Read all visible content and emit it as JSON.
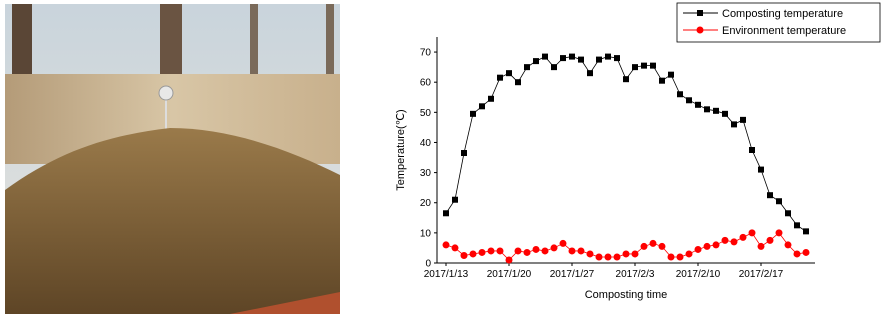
{
  "chart_data": {
    "type": "line",
    "xlabel": "Composting time",
    "ylabel": "Temperature(℃)",
    "x": [
      "2017/1/13",
      "2017/1/14",
      "2017/1/15",
      "2017/1/16",
      "2017/1/17",
      "2017/1/18",
      "2017/1/19",
      "2017/1/20",
      "2017/1/21",
      "2017/1/22",
      "2017/1/23",
      "2017/1/24",
      "2017/1/25",
      "2017/1/26",
      "2017/1/27",
      "2017/1/28",
      "2017/1/29",
      "2017/1/30",
      "2017/1/31",
      "2017/2/1",
      "2017/2/2",
      "2017/2/3",
      "2017/2/4",
      "2017/2/5",
      "2017/2/6",
      "2017/2/7",
      "2017/2/8",
      "2017/2/9",
      "2017/2/10",
      "2017/2/11",
      "2017/2/12",
      "2017/2/13",
      "2017/2/14",
      "2017/2/15",
      "2017/2/16",
      "2017/2/17",
      "2017/2/18",
      "2017/2/19",
      "2017/2/20",
      "2017/2/21",
      "2017/2/22"
    ],
    "series": [
      {
        "name": "Composting  temperature",
        "color": "#000000",
        "marker": "square",
        "values": [
          16.5,
          21,
          36.5,
          49.5,
          52,
          54.5,
          61.5,
          63,
          60,
          65,
          67,
          68.5,
          65,
          68,
          68.5,
          67.5,
          63,
          67.5,
          68.5,
          68,
          61,
          65,
          65.5,
          65.5,
          60.5,
          62.5,
          56,
          54,
          52.5,
          51,
          50.5,
          49.5,
          46,
          47.5,
          37.5,
          31,
          22.5,
          20.5,
          16.5,
          12.5,
          10.5
        ]
      },
      {
        "name": "Environment  temperature",
        "color": "#ff0000",
        "marker": "circle",
        "values": [
          6,
          5,
          2.5,
          3,
          3.5,
          4,
          4,
          1,
          4,
          3.5,
          4.5,
          4,
          5,
          6.5,
          4,
          4,
          3,
          2,
          2,
          2,
          3,
          3,
          5.5,
          6.5,
          5.5,
          2,
          2,
          3,
          4.5,
          5.5,
          6,
          7.5,
          7,
          8.5,
          10,
          5.5,
          7.5,
          10,
          6,
          3,
          3.5
        ]
      }
    ],
    "xlim": [
      "2017/1/12",
      "2017/2/23"
    ],
    "xticks": [
      "2017/1/13",
      "2017/1/20",
      "2017/1/27",
      "2017/2/3",
      "2017/2/10",
      "2017/2/17"
    ],
    "ylim": [
      0,
      75
    ],
    "yticks": [
      0,
      10,
      20,
      30,
      40,
      50,
      60,
      70
    ],
    "legend": "upper right"
  }
}
